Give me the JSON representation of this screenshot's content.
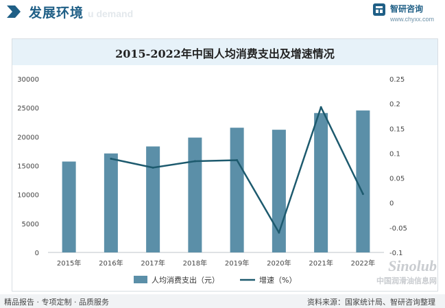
{
  "header": {
    "title": "发展环境",
    "watermark": "u demand"
  },
  "brand": {
    "name": "智研咨询",
    "url": "www.chyxx.com"
  },
  "footer": {
    "left": "精品报告 · 专项定制 · 品质服务",
    "source": "资料来源：国家统计局、智研咨询整理"
  },
  "corner_watermark": {
    "line1": "Sinolub",
    "line2": "中国润滑油信息网"
  },
  "colors": {
    "bar": "#5b8fa8",
    "line": "#1d5a6e",
    "title_bar": "#e7f2f9",
    "accent": "#1f5f86"
  },
  "chart_data": {
    "type": "bar",
    "title": "2015-2022年中国人均消费支出及增速情况",
    "categories": [
      "2015年",
      "2016年",
      "2017年",
      "2018年",
      "2019年",
      "2020年",
      "2021年",
      "2022年"
    ],
    "series": [
      {
        "name": "人均消费支出（元）",
        "type": "bar",
        "axis": "left",
        "values": [
          15712,
          17111,
          18322,
          19853,
          21559,
          21210,
          24100,
          24538
        ]
      },
      {
        "name": "增速（%）",
        "type": "line",
        "axis": "right",
        "values": [
          null,
          0.089,
          0.071,
          0.084,
          0.086,
          -0.06,
          0.193,
          0.018
        ]
      }
    ],
    "y_left": {
      "min": 0,
      "max": 30000,
      "ticks": [
        "0",
        "5000",
        "10000",
        "15000",
        "20000",
        "25000",
        "30000"
      ]
    },
    "y_right": {
      "min": -0.1,
      "max": 0.25,
      "ticks": [
        "-0.1",
        "-0.05",
        "0",
        "0.05",
        "0.1",
        "0.15",
        "0.2",
        "0.25"
      ]
    },
    "grid": false,
    "legend_position": "bottom"
  }
}
